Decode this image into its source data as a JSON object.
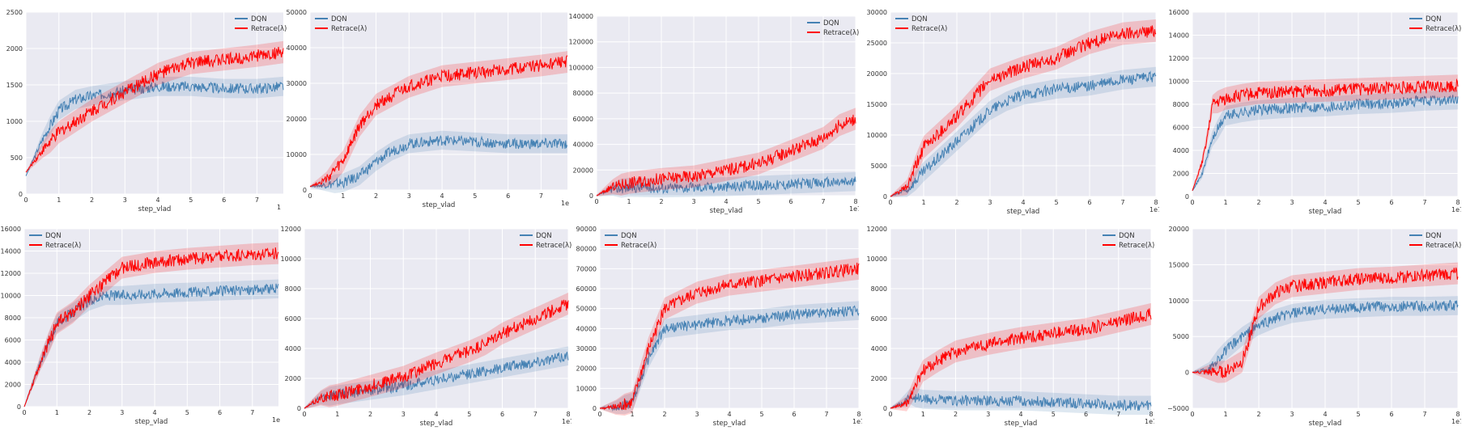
{
  "colors": {
    "dqn": "#4682b4",
    "retrace": "#ff0000",
    "bg": "#eaeaf2",
    "grid": "#ffffff"
  },
  "chart_data": [
    {
      "type": "line",
      "xlabel": "step_vlad",
      "xlim": [
        0,
        7.8
      ],
      "ylim": [
        0,
        2500
      ],
      "xticks": [
        "0",
        "1",
        "2",
        "3",
        "4",
        "5",
        "6",
        "7"
      ],
      "yticks": [
        "0",
        "500",
        "1000",
        "1500",
        "2000",
        "2500"
      ],
      "x_multiplier": "1",
      "legend": "top-right",
      "series": [
        {
          "name": "DQN",
          "x": [
            0,
            0.5,
            1,
            1.5,
            2,
            3,
            4,
            5,
            6,
            7,
            7.8
          ],
          "y": [
            250,
            750,
            1150,
            1300,
            1350,
            1420,
            1480,
            1480,
            1450,
            1450,
            1480
          ]
        },
        {
          "name": "Retrace(λ)",
          "x": [
            0,
            0.5,
            1,
            2,
            3,
            4,
            5,
            6,
            7,
            7.8
          ],
          "y": [
            300,
            600,
            850,
            1150,
            1400,
            1650,
            1800,
            1850,
            1900,
            1950
          ]
        }
      ]
    },
    {
      "type": "line",
      "xlabel": "step_vlad",
      "xlim": [
        0,
        7.8
      ],
      "ylim": [
        0,
        50000
      ],
      "xticks": [
        "0",
        "1",
        "2",
        "3",
        "4",
        "5",
        "6",
        "7"
      ],
      "yticks": [
        "0",
        "10000",
        "20000",
        "30000",
        "40000",
        "50000"
      ],
      "x_multiplier": "1e",
      "legend": "top-left",
      "series": [
        {
          "name": "DQN",
          "x": [
            0,
            1,
            1.5,
            2,
            2.5,
            3,
            4,
            5,
            6,
            7,
            7.8
          ],
          "y": [
            1000,
            2000,
            4000,
            8000,
            11000,
            13000,
            14000,
            13500,
            13000,
            13000,
            13000
          ]
        },
        {
          "name": "Retrace(λ)",
          "x": [
            0,
            0.5,
            1,
            1.5,
            2,
            3,
            4,
            5,
            6,
            7,
            7.8
          ],
          "y": [
            1000,
            3000,
            8000,
            18000,
            24000,
            29000,
            32000,
            33000,
            34000,
            35000,
            36000
          ]
        }
      ]
    },
    {
      "type": "line",
      "xlabel": "step_vlad",
      "xlim": [
        0,
        8
      ],
      "ylim": [
        0,
        140000
      ],
      "xticks": [
        "0",
        "1",
        "2",
        "3",
        "4",
        "5",
        "6",
        "7",
        "8"
      ],
      "yticks": [
        "0",
        "20000",
        "40000",
        "60000",
        "80000",
        "100000",
        "120000",
        "140000"
      ],
      "x_multiplier": "1e7",
      "legend": "top-right",
      "series": [
        {
          "name": "DQN",
          "x": [
            0,
            0.5,
            1,
            2,
            3,
            4,
            5,
            6,
            7,
            8
          ],
          "y": [
            0,
            5000,
            6500,
            6000,
            6500,
            7000,
            8000,
            9000,
            10000,
            11000
          ]
        },
        {
          "name": "Retrace(λ)",
          "x": [
            0,
            0.5,
            1,
            2,
            3,
            4,
            5,
            5.5,
            6,
            6.5,
            7,
            7.5,
            8
          ],
          "y": [
            0,
            7000,
            10000,
            13000,
            15000,
            20000,
            25000,
            30000,
            35000,
            40000,
            45000,
            55000,
            60000
          ]
        }
      ]
    },
    {
      "type": "line",
      "xlabel": "step_vlad",
      "xlim": [
        0,
        8
      ],
      "ylim": [
        0,
        30000
      ],
      "xticks": [
        "0",
        "1",
        "2",
        "3",
        "4",
        "5",
        "6",
        "7",
        "8"
      ],
      "yticks": [
        "0",
        "5000",
        "10000",
        "15000",
        "20000",
        "25000",
        "30000"
      ],
      "x_multiplier": "1e7",
      "legend": "top-left",
      "series": [
        {
          "name": "DQN",
          "x": [
            0,
            0.5,
            1,
            2,
            3,
            3.5,
            4,
            5,
            6,
            7,
            8
          ],
          "y": [
            0,
            1000,
            4000,
            9000,
            14000,
            15500,
            16500,
            17500,
            18000,
            19000,
            19500
          ]
        },
        {
          "name": "Retrace(λ)",
          "x": [
            0,
            0.5,
            1,
            2,
            3,
            4,
            5,
            6,
            7,
            8
          ],
          "y": [
            0,
            1500,
            8000,
            13000,
            19000,
            21000,
            22500,
            25000,
            26500,
            27000
          ]
        }
      ]
    },
    {
      "type": "line",
      "xlabel": "step_vlad",
      "xlim": [
        0,
        8
      ],
      "ylim": [
        0,
        16000
      ],
      "xticks": [
        "0",
        "1",
        "2",
        "3",
        "4",
        "5",
        "6",
        "7",
        "8"
      ],
      "yticks": [
        "0",
        "2000",
        "4000",
        "6000",
        "8000",
        "10000",
        "12000",
        "14000",
        "16000"
      ],
      "x_multiplier": "1e7",
      "legend": "top-right",
      "series": [
        {
          "name": "DQN",
          "x": [
            0,
            0.3,
            0.6,
            1,
            1.5,
            2,
            3,
            4,
            5,
            6,
            7,
            8
          ],
          "y": [
            500,
            2000,
            5000,
            7000,
            7300,
            7500,
            7700,
            7800,
            8000,
            8100,
            8300,
            8400
          ]
        },
        {
          "name": "Retrace(λ)",
          "x": [
            0,
            0.3,
            0.5,
            0.6,
            1,
            1.5,
            2,
            3,
            4,
            5,
            6,
            7,
            8
          ],
          "y": [
            500,
            3000,
            6000,
            8000,
            8500,
            8800,
            9000,
            9100,
            9200,
            9300,
            9400,
            9500,
            9600
          ]
        }
      ]
    },
    {
      "type": "line",
      "xlabel": "step_vlad",
      "xlim": [
        0,
        7.8
      ],
      "ylim": [
        0,
        16000
      ],
      "xticks": [
        "0",
        "1",
        "2",
        "3",
        "4",
        "5",
        "6",
        "7"
      ],
      "yticks": [
        "0",
        "2000",
        "4000",
        "6000",
        "8000",
        "10000",
        "12000",
        "14000",
        "16000"
      ],
      "x_multiplier": "1e",
      "legend": "top-left",
      "series": [
        {
          "name": "DQN",
          "x": [
            0,
            0.5,
            1,
            1.5,
            2,
            2.5,
            3,
            4,
            5,
            6,
            7,
            7.8
          ],
          "y": [
            0,
            4000,
            7500,
            8500,
            9500,
            10000,
            10000,
            10200,
            10300,
            10400,
            10500,
            10600
          ]
        },
        {
          "name": "Retrace(λ)",
          "x": [
            0,
            0.5,
            1,
            1.5,
            2,
            3,
            4,
            5,
            6,
            7,
            7.8
          ],
          "y": [
            0,
            4000,
            7500,
            8500,
            10000,
            12500,
            13000,
            13300,
            13500,
            13700,
            13800
          ]
        }
      ]
    },
    {
      "type": "line",
      "xlabel": "step_vlad",
      "xlim": [
        0,
        8
      ],
      "ylim": [
        0,
        12000
      ],
      "xticks": [
        "0",
        "1",
        "2",
        "3",
        "4",
        "5",
        "6",
        "7",
        "8"
      ],
      "yticks": [
        "0",
        "2000",
        "4000",
        "6000",
        "8000",
        "10000",
        "12000"
      ],
      "x_multiplier": "1e7",
      "legend": "top-right",
      "series": [
        {
          "name": "DQN",
          "x": [
            0,
            0.5,
            1,
            2,
            3,
            4,
            5,
            6,
            7,
            8
          ],
          "y": [
            0,
            700,
            900,
            1200,
            1500,
            1900,
            2300,
            2700,
            3100,
            3500
          ]
        },
        {
          "name": "Retrace(λ)",
          "x": [
            0,
            0.5,
            1,
            2,
            3,
            4,
            5,
            5.5,
            6,
            6.5,
            7,
            7.5,
            8
          ],
          "y": [
            0,
            700,
            900,
            1500,
            2100,
            3000,
            3800,
            4300,
            5000,
            5500,
            6000,
            6500,
            7000
          ]
        }
      ]
    },
    {
      "type": "line",
      "xlabel": "step_vlad",
      "xlim": [
        0,
        8
      ],
      "ylim": [
        0,
        90000
      ],
      "xticks": [
        "0",
        "1",
        "2",
        "3",
        "4",
        "5",
        "6",
        "7",
        "8"
      ],
      "yticks": [
        "0",
        "10000",
        "20000",
        "30000",
        "40000",
        "50000",
        "60000",
        "70000",
        "80000",
        "90000"
      ],
      "x_multiplier": "1e7",
      "legend": "top-left",
      "series": [
        {
          "name": "DQN",
          "x": [
            0,
            0.5,
            1,
            1.5,
            2,
            3,
            4,
            5,
            6,
            7,
            8
          ],
          "y": [
            0,
            500,
            3000,
            25000,
            40000,
            42000,
            44000,
            45000,
            47000,
            48000,
            49000
          ]
        },
        {
          "name": "Retrace(λ)",
          "x": [
            0,
            0.5,
            1,
            1.5,
            2,
            3,
            4,
            5,
            6,
            7,
            8
          ],
          "y": [
            0,
            500,
            3000,
            30000,
            50000,
            58000,
            62000,
            64000,
            66000,
            68000,
            70000
          ]
        }
      ]
    },
    {
      "type": "line",
      "xlabel": "step_vlad",
      "xlim": [
        0,
        8
      ],
      "ylim": [
        0,
        12000
      ],
      "xticks": [
        "0",
        "1",
        "2",
        "3",
        "4",
        "5",
        "6",
        "7",
        "8"
      ],
      "yticks": [
        "0",
        "2000",
        "4000",
        "6000",
        "8000",
        "10000",
        "12000"
      ],
      "x_multiplier": "1e7",
      "legend": "top-right",
      "series": [
        {
          "name": "DQN",
          "x": [
            0,
            0.3,
            0.6,
            1,
            2,
            3,
            4,
            5,
            6,
            7,
            8
          ],
          "y": [
            0,
            300,
            800,
            600,
            500,
            500,
            500,
            400,
            300,
            200,
            200
          ]
        },
        {
          "name": "Retrace(λ)",
          "x": [
            0,
            0.5,
            1,
            1.5,
            2,
            3,
            4,
            5,
            6,
            7,
            8
          ],
          "y": [
            0,
            300,
            2500,
            3200,
            3800,
            4300,
            4700,
            5000,
            5300,
            5800,
            6300
          ]
        }
      ]
    },
    {
      "type": "line",
      "xlabel": "step_vlad",
      "xlim": [
        0,
        8
      ],
      "ylim": [
        -5000,
        20000
      ],
      "xticks": [
        "0",
        "1",
        "2",
        "3",
        "4",
        "5",
        "6",
        "7",
        "8"
      ],
      "yticks": [
        "−5000",
        "0",
        "5000",
        "10000",
        "15000",
        "20000"
      ],
      "x_multiplier": "1e7",
      "legend": "top-right",
      "series": [
        {
          "name": "DQN",
          "x": [
            0,
            0.5,
            1,
            1.5,
            2,
            2.5,
            3,
            4,
            5,
            6,
            7,
            8
          ],
          "y": [
            0,
            500,
            3000,
            5000,
            6500,
            7500,
            8200,
            8800,
            9000,
            9200,
            9200,
            9300
          ]
        },
        {
          "name": "Retrace(λ)",
          "x": [
            0,
            0.5,
            1,
            1.5,
            2,
            2.5,
            3,
            4,
            5,
            6,
            7,
            8
          ],
          "y": [
            0,
            0,
            100,
            1500,
            9000,
            11000,
            12000,
            12500,
            13000,
            13200,
            13500,
            13800
          ]
        }
      ]
    }
  ]
}
